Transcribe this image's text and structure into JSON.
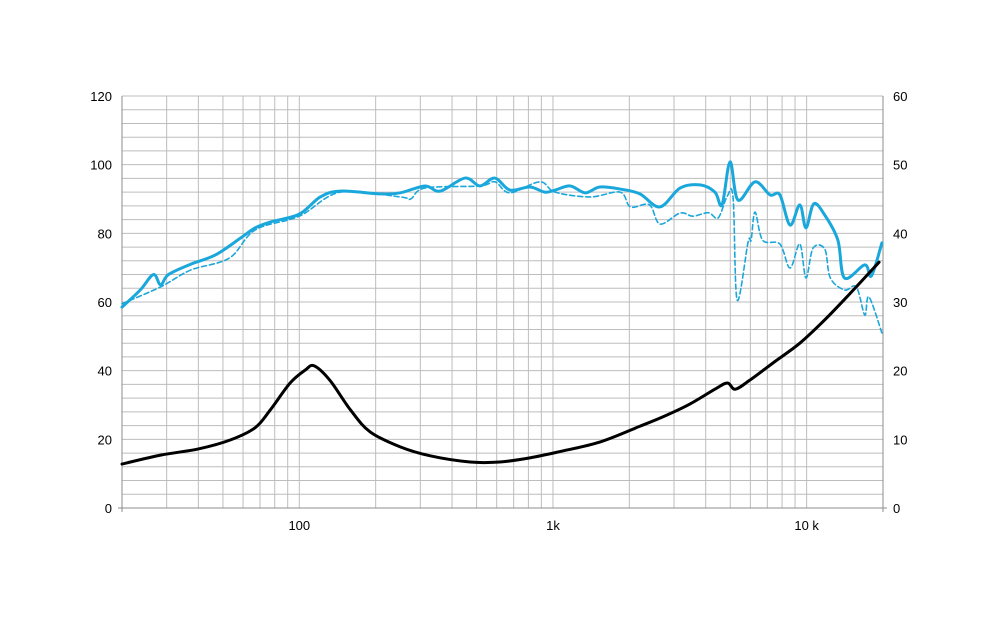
{
  "chart_data": {
    "type": "line",
    "title": "",
    "xlabel": "",
    "ylabel": "",
    "y2label": "",
    "x_scale": "log",
    "xlim": [
      20,
      20000
    ],
    "ylim": [
      0,
      120
    ],
    "y2lim": [
      0,
      60
    ],
    "grid": true,
    "legend": "none",
    "x_ticks": [
      {
        "value": 100,
        "label": "100"
      },
      {
        "value": 1000,
        "label": "1k"
      },
      {
        "value": 10000,
        "label": "10 k"
      }
    ],
    "y_ticks": [
      "0",
      "20",
      "40",
      "60",
      "80",
      "100",
      "120"
    ],
    "y2_ticks": [
      "0",
      "10",
      "20",
      "30",
      "40",
      "50",
      "60"
    ],
    "colors": {
      "spl": "#1aa7dc",
      "impedance": "#000000",
      "grid": "#bdbdbd",
      "axis": "#8c8c8c"
    },
    "series": [
      {
        "axis": "left",
        "style": "solid",
        "color": "#1aa7dc",
        "x": [
          20,
          23.6,
          26.6,
          28.4,
          30.5,
          37.3,
          46.7,
          58.6,
          67,
          76.9,
          100,
          121,
          145,
          208,
          250,
          313,
          359,
          450,
          515,
          590,
          677,
          811,
          929,
          1020,
          1170,
          1340,
          1530,
          1840,
          2200,
          2640,
          3170,
          3800,
          4350,
          4640,
          4990,
          5360,
          6260,
          7170,
          7840,
          8600,
          9400,
          9940,
          10670,
          11790,
          13280,
          14100,
          16950,
          18000,
          19800
        ],
        "y": [
          58.5,
          63.5,
          68,
          65,
          68,
          71,
          73.7,
          78.6,
          81.6,
          83.3,
          85.6,
          90.6,
          92.3,
          91.5,
          91.8,
          93.8,
          92.3,
          96.1,
          93.8,
          96.1,
          92.6,
          93.5,
          92,
          92.6,
          93.8,
          91.8,
          93.5,
          92.9,
          91.5,
          87.7,
          93.2,
          94.1,
          92,
          88.3,
          100.8,
          89.7,
          95,
          91.2,
          91.2,
          82.4,
          88.3,
          81.6,
          88.6,
          85.3,
          78,
          67,
          70.8,
          67.6,
          77.2
        ]
      },
      {
        "axis": "left",
        "style": "dashed",
        "color": "#1aa7dc",
        "x": [
          20,
          28.4,
          37.3,
          53,
          67,
          100,
          145,
          250,
          275,
          313,
          515,
          590,
          677,
          887,
          1020,
          1400,
          1840,
          2020,
          2400,
          2640,
          3170,
          3560,
          4100,
          4480,
          4870,
          5130,
          5320,
          5880,
          6040,
          6260,
          6710,
          7840,
          8600,
          9400,
          9940,
          10600,
          11790,
          12400,
          14100,
          15700,
          16950,
          17600,
          19800
        ],
        "y": [
          59.5,
          64.4,
          69.3,
          72.8,
          81,
          85,
          92,
          90.6,
          90,
          93.2,
          93.8,
          95,
          91.8,
          95,
          92,
          90.6,
          92,
          87.7,
          88.3,
          82.7,
          85.9,
          85,
          86,
          84.5,
          90.9,
          90.3,
          60.6,
          77.5,
          78,
          86.2,
          78,
          76.9,
          69.9,
          76.9,
          67,
          75.7,
          75.4,
          67,
          63.5,
          64.4,
          56.2,
          61.5,
          51
        ]
      },
      {
        "axis": "right",
        "style": "solid",
        "color": "#000000",
        "x": [
          20,
          28.4,
          40,
          53.4,
          67,
          76.9,
          92,
          105.6,
          114.5,
          132,
          159,
          190,
          250,
          328,
          471,
          617,
          811,
          1060,
          1530,
          2200,
          2760,
          3450,
          4350,
          4870,
          5230,
          5960,
          7480,
          9400,
          11790,
          14800,
          19300
        ],
        "y": [
          6.4,
          7.7,
          8.6,
          9.9,
          11.7,
          14.3,
          18.2,
          20.1,
          20.7,
          18.6,
          14.3,
          11.1,
          8.9,
          7.6,
          6.7,
          6.7,
          7.3,
          8.2,
          9.6,
          11.9,
          13.4,
          15.1,
          17.3,
          18.2,
          17.3,
          18.6,
          21.3,
          24,
          27.4,
          31.2,
          35.8
        ]
      }
    ]
  }
}
